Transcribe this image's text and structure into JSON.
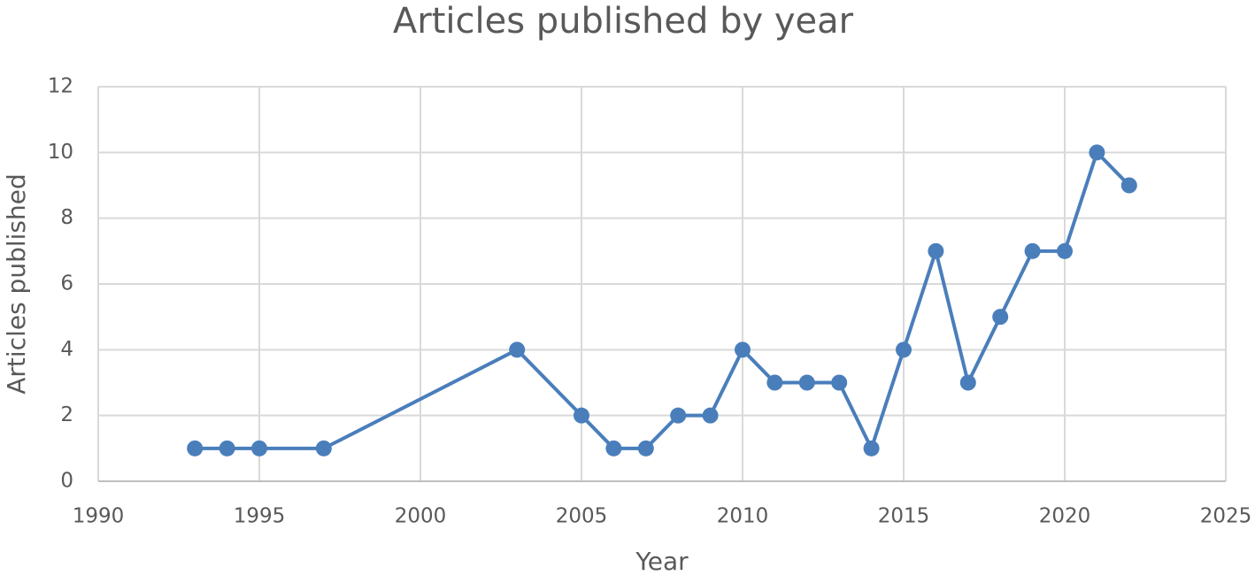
{
  "chart_data": {
    "type": "line",
    "title": "Articles published by year",
    "x_label": "Year",
    "y_label": "Articles published",
    "x": [
      1993,
      1994,
      1995,
      1997,
      2003,
      2005,
      2006,
      2007,
      2008,
      2009,
      2010,
      2011,
      2012,
      2013,
      2014,
      2015,
      2016,
      2017,
      2018,
      2019,
      2020,
      2021,
      2022
    ],
    "values": [
      1,
      1,
      1,
      1,
      4,
      2,
      1,
      1,
      2,
      2,
      4,
      3,
      3,
      3,
      1,
      4,
      7,
      3,
      5,
      7,
      7,
      10,
      9
    ],
    "color": "#4a7ebb",
    "xlim": [
      1990,
      2025
    ],
    "xticks": [
      1990,
      1995,
      2000,
      2005,
      2010,
      2015,
      2020,
      2025
    ],
    "ylim": [
      0,
      12
    ],
    "yticks": [
      0,
      2,
      4,
      6,
      8,
      10,
      12
    ],
    "grid": true
  }
}
